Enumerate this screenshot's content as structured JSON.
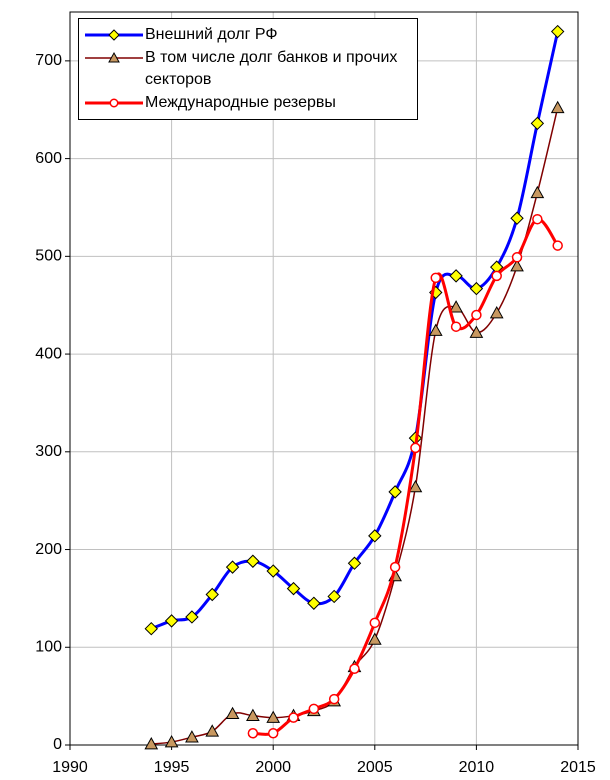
{
  "chart_data": {
    "type": "line",
    "x": [
      1994,
      1995,
      1996,
      1997,
      1998,
      1999,
      2000,
      2001,
      2002,
      2003,
      2004,
      2005,
      2006,
      2007,
      2008,
      2009,
      2010,
      2011,
      2012,
      2013,
      2014
    ],
    "series": [
      {
        "name": "Внешний долг РФ",
        "color": "#0000ff",
        "marker_color": "#ffff00",
        "marker": "diamond",
        "values": [
          119,
          127,
          131,
          154,
          182,
          188,
          178,
          160,
          145,
          152,
          186,
          214,
          259,
          314,
          463,
          480,
          467,
          489,
          539,
          636,
          730
        ]
      },
      {
        "name": "В том числе долг банков и прочих секторов",
        "color": "#800000",
        "marker_color": "#c89860",
        "marker": "triangle",
        "values": [
          1,
          3,
          8,
          14,
          32,
          30,
          28,
          30,
          35,
          45,
          80,
          108,
          173,
          264,
          424,
          448,
          422,
          442,
          490,
          565,
          652
        ]
      },
      {
        "name": "Международные резервы",
        "color": "#ff0000",
        "marker_color": "#ffffff",
        "marker": "circle",
        "values": [
          null,
          null,
          null,
          null,
          null,
          12,
          12,
          28,
          37,
          47,
          78,
          125,
          182,
          304,
          478,
          428,
          440,
          480,
          499,
          538,
          511
        ]
      }
    ],
    "xlim": [
      1990,
      2015
    ],
    "xticks": [
      1990,
      1995,
      2000,
      2005,
      2010,
      2015
    ],
    "ylim": [
      0,
      750
    ],
    "yticks": [
      0,
      100,
      200,
      300,
      400,
      500,
      600,
      700
    ],
    "grid": true,
    "legend": "upper left"
  }
}
